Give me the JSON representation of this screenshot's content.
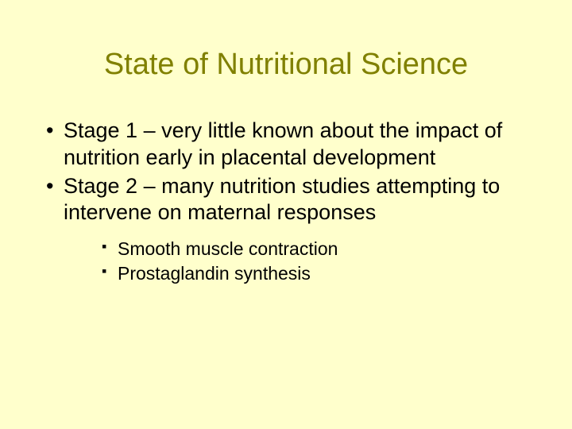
{
  "slide": {
    "background_color": "#ffffcc",
    "title": {
      "text": "State of Nutritional Science",
      "color": "#808000",
      "font_size_pt": 38,
      "font_weight": "normal",
      "align": "center"
    },
    "bullets": [
      {
        "level": 1,
        "text": "Stage 1 – very little known about the impact of nutrition early in placental development"
      },
      {
        "level": 1,
        "text": "Stage 2 – many nutrition studies attempting to intervene on maternal responses"
      }
    ],
    "sub_bullets": [
      {
        "level": 2,
        "text": "Smooth muscle contraction"
      },
      {
        "level": 2,
        "text": "Prostaglandin synthesis"
      }
    ],
    "body_text_color": "#000000",
    "body_font_size_pt_l1": 27,
    "body_font_size_pt_l2": 23,
    "bullet_marker_l1": "•",
    "bullet_marker_l2": "▪"
  }
}
